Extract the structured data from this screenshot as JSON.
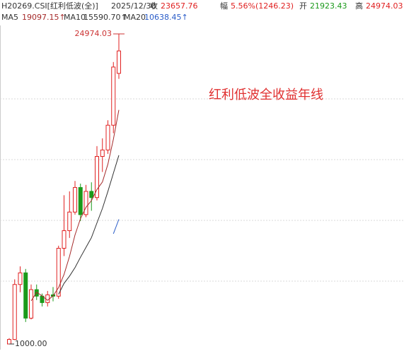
{
  "header": {
    "code": "H20269.CSI[红利低波(全)]",
    "date": "2025/12/30",
    "quotes": [
      {
        "label": "收",
        "value": "23657.76",
        "color": "#e02020"
      },
      {
        "label": "幅",
        "value": "5.56%(1246.23)",
        "color": "#e02020"
      },
      {
        "label": "开",
        "value": "21923.43",
        "color": "#1a9a1a"
      },
      {
        "label": "高",
        "value": "24974.03",
        "color": "#e02020"
      }
    ]
  },
  "chart_data": {
    "type": "candlestick",
    "annotation": "红利低波全收益年线",
    "open": [
      1000,
      1350,
      5600,
      6500,
      3000,
      5200,
      4700,
      4200,
      4800,
      4700,
      8400,
      9762,
      11200,
      13100,
      11000,
      12800,
      12321.25,
      15500,
      16000,
      17916.46,
      21923.43
    ],
    "high": [
      1450,
      6000,
      7000,
      6800,
      5600,
      5600,
      4900,
      5100,
      5400,
      8600,
      12500,
      12800,
      13600,
      13400,
      13300,
      13500,
      16300,
      16900,
      18300,
      22800,
      24974.03
    ],
    "low": [
      1000,
      1300,
      5000,
      2700,
      2900,
      4400,
      3900,
      3900,
      4300,
      4500,
      7800,
      9200,
      11000,
      10500,
      10800,
      11300,
      12100,
      14300,
      15700,
      17300,
      21500
    ],
    "close": [
      1350,
      5600,
      6500,
      3000,
      5200,
      4700,
      4200,
      4800,
      4700,
      8400,
      9762,
      11200,
      13100,
      11000,
      12800,
      12321.25,
      15500,
      16000,
      17916.46,
      22411.53,
      23657.76
    ],
    "up_color": "#e02020",
    "down_color": "#1a9a1a",
    "high_label": "24974.03",
    "low_label": "1000.00",
    "ylim": [
      563,
      25411
    ],
    "series": [
      {
        "name": "MA5",
        "color": "#a52a2a",
        "value_label": "19097.15↑",
        "values": [
          null,
          null,
          null,
          null,
          4330,
          5000,
          4720,
          4380,
          4720,
          5360,
          6372.4,
          7772.4,
          9432.4,
          10692.4,
          11572.4,
          12084.25,
          12944.25,
          13524.25,
          14907.54,
          16829.85,
          19097.15
        ]
      },
      {
        "name": "MA10",
        "color": "#333333",
        "value_label": "15590.70↑",
        "values": [
          null,
          null,
          null,
          null,
          null,
          null,
          null,
          null,
          null,
          4845,
          5686.2,
          6246.2,
          6906.2,
          7706.2,
          8466.2,
          9228.33,
          10358.33,
          11478.33,
          12799.97,
          14201.12,
          15590.7
        ]
      },
      {
        "name": "MA20",
        "color": "#2a5cc8",
        "value_label": "10638.45↑",
        "values": [
          null,
          null,
          null,
          null,
          null,
          null,
          null,
          null,
          null,
          null,
          null,
          null,
          null,
          null,
          null,
          null,
          null,
          null,
          null,
          9523.06,
          10638.45
        ]
      }
    ]
  }
}
